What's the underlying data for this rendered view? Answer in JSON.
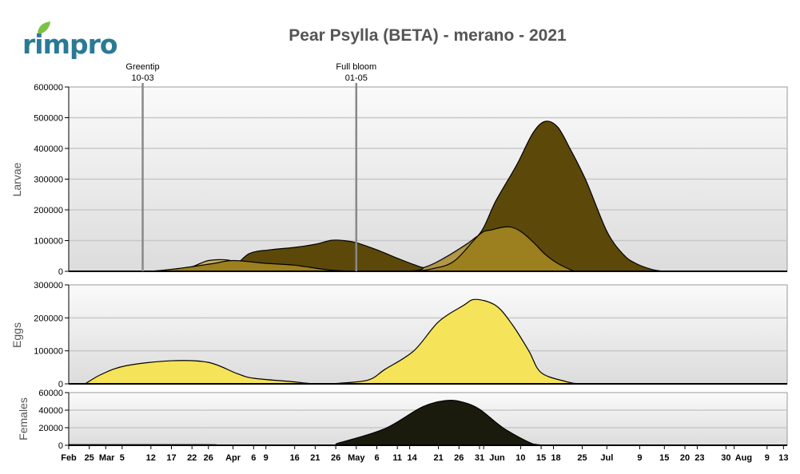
{
  "title": "Pear Psylla (BETA) - merano - 2021",
  "logo": {
    "text": "rimpro",
    "leaf_color": "#7cc242",
    "text_color": "#2a7a95"
  },
  "markers": [
    {
      "label": "Greentip",
      "date_label": "10-03",
      "date": "03-10"
    },
    {
      "label": "Full bloom",
      "date_label": "01-05",
      "date": "05-01"
    }
  ],
  "x_axis": {
    "start": "02-20",
    "end": "08-14",
    "ticks": [
      {
        "label": "Feb",
        "date": "02-20"
      },
      {
        "label": "25",
        "date": "02-25"
      },
      {
        "label": "Mar",
        "date": "03-01"
      },
      {
        "label": "5",
        "date": "03-05"
      },
      {
        "label": "12",
        "date": "03-12"
      },
      {
        "label": "17",
        "date": "03-17"
      },
      {
        "label": "22",
        "date": "03-22"
      },
      {
        "label": "26",
        "date": "03-26"
      },
      {
        "label": "Apr",
        "date": "04-01"
      },
      {
        "label": "6",
        "date": "04-06"
      },
      {
        "label": "9",
        "date": "04-09"
      },
      {
        "label": "16",
        "date": "04-16"
      },
      {
        "label": "21",
        "date": "04-21"
      },
      {
        "label": "26",
        "date": "04-26"
      },
      {
        "label": "May",
        "date": "05-01"
      },
      {
        "label": "6",
        "date": "05-06"
      },
      {
        "label": "11",
        "date": "05-11"
      },
      {
        "label": "14",
        "date": "05-14"
      },
      {
        "label": "21",
        "date": "05-21"
      },
      {
        "label": "26",
        "date": "05-26"
      },
      {
        "label": "31",
        "date": "05-31"
      },
      {
        "label": "Jun",
        "date": "06-01"
      },
      {
        "label": "10",
        "date": "06-10"
      },
      {
        "label": "15",
        "date": "06-15"
      },
      {
        "label": "18",
        "date": "06-18"
      },
      {
        "label": "25",
        "date": "06-25"
      },
      {
        "label": "Jul",
        "date": "07-01"
      },
      {
        "label": "9",
        "date": "07-09"
      },
      {
        "label": "15",
        "date": "07-15"
      },
      {
        "label": "20",
        "date": "07-20"
      },
      {
        "label": "23",
        "date": "07-23"
      },
      {
        "label": "30",
        "date": "07-30"
      },
      {
        "label": "Aug",
        "date": "08-01"
      },
      {
        "label": "9",
        "date": "08-09"
      },
      {
        "label": "13",
        "date": "08-13"
      }
    ]
  },
  "chart_data": [
    {
      "type": "area",
      "ylabel": "Larvae",
      "ylim": [
        0,
        600000
      ],
      "yticks": [
        "0",
        "100000",
        "200000",
        "300000",
        "400000",
        "500000",
        "600000"
      ],
      "grid": true,
      "series": [
        {
          "color": "#5c4909",
          "points": [
            [
              "03-27",
              0
            ],
            [
              "04-01",
              15000
            ],
            [
              "04-05",
              58000
            ],
            [
              "04-10",
              70000
            ],
            [
              "04-16",
              78000
            ],
            [
              "04-21",
              88000
            ],
            [
              "04-25",
              101000
            ],
            [
              "04-28",
              100000
            ],
            [
              "05-01",
              93000
            ],
            [
              "05-06",
              70000
            ],
            [
              "05-10",
              48000
            ],
            [
              "05-15",
              22000
            ],
            [
              "05-18",
              12000
            ],
            [
              "05-21",
              30000
            ],
            [
              "05-25",
              60000
            ],
            [
              "05-31",
              122000
            ],
            [
              "06-04",
              230000
            ],
            [
              "06-09",
              345000
            ],
            [
              "06-13",
              450000
            ],
            [
              "06-16",
              488000
            ],
            [
              "06-19",
              470000
            ],
            [
              "06-22",
              400000
            ],
            [
              "06-26",
              293000
            ],
            [
              "07-01",
              130000
            ],
            [
              "07-05",
              55000
            ],
            [
              "07-08",
              26000
            ],
            [
              "07-12",
              6000
            ],
            [
              "07-15",
              0
            ]
          ]
        },
        {
          "color": "#c2a552",
          "opacity": 0.85,
          "points": [
            [
              "03-13",
              0
            ],
            [
              "03-18",
              8000
            ],
            [
              "03-22",
              15000
            ],
            [
              "03-26",
              35000
            ],
            [
              "03-31",
              36000
            ],
            [
              "04-03",
              15000
            ],
            [
              "04-08",
              0
            ],
            [
              "05-12",
              0
            ],
            [
              "05-18",
              15000
            ],
            [
              "05-23",
              48000
            ],
            [
              "05-28",
              90000
            ],
            [
              "05-31",
              118000
            ],
            [
              "06-03",
              125000
            ],
            [
              "06-08",
              100000
            ],
            [
              "06-15",
              30000
            ],
            [
              "06-20",
              0
            ]
          ]
        },
        {
          "color": "#9c7f1e",
          "points": [
            [
              "03-12",
              0
            ],
            [
              "03-18",
              8000
            ],
            [
              "03-27",
              25000
            ],
            [
              "04-01",
              35000
            ],
            [
              "04-09",
              26000
            ],
            [
              "04-16",
              20000
            ],
            [
              "04-24",
              5000
            ],
            [
              "05-01",
              0
            ],
            [
              "05-14",
              0
            ],
            [
              "05-20",
              10000
            ],
            [
              "05-25",
              35000
            ],
            [
              "05-31",
              120000
            ],
            [
              "06-03",
              135000
            ],
            [
              "06-07",
              145000
            ],
            [
              "06-10",
              130000
            ],
            [
              "06-13",
              96000
            ],
            [
              "06-16",
              55000
            ],
            [
              "06-19",
              26000
            ],
            [
              "06-23",
              0
            ]
          ]
        }
      ]
    },
    {
      "type": "area",
      "ylabel": "Eggs",
      "ylim": [
        0,
        300000
      ],
      "yticks": [
        "0",
        "100000",
        "200000",
        "300000"
      ],
      "grid": true,
      "series": [
        {
          "color": "#f5e35a",
          "points": [
            [
              "02-24",
              0
            ],
            [
              "02-28",
              29000
            ],
            [
              "03-06",
              55000
            ],
            [
              "03-17",
              70000
            ],
            [
              "03-26",
              65000
            ],
            [
              "04-02",
              31000
            ],
            [
              "04-06",
              17000
            ],
            [
              "04-15",
              7000
            ],
            [
              "04-21",
              0
            ],
            [
              "04-27",
              2000
            ],
            [
              "05-04",
              12000
            ],
            [
              "05-08",
              44000
            ],
            [
              "05-15",
              100000
            ],
            [
              "05-21",
              188000
            ],
            [
              "05-27",
              237000
            ],
            [
              "05-30",
              256000
            ],
            [
              "06-04",
              237000
            ],
            [
              "06-08",
              179000
            ],
            [
              "06-12",
              100000
            ],
            [
              "06-15",
              34000
            ],
            [
              "06-21",
              7000
            ],
            [
              "06-24",
              0
            ]
          ]
        }
      ]
    },
    {
      "type": "area",
      "ylabel": "Females",
      "ylim": [
        0,
        60000
      ],
      "yticks": [
        "0",
        "20000",
        "40000",
        "60000"
      ],
      "grid": true,
      "series": [
        {
          "color": "#1a1a0d",
          "points": [
            [
              "02-20",
              700
            ],
            [
              "03-26",
              700
            ],
            [
              "03-27",
              0
            ],
            [
              "04-23",
              0
            ],
            [
              "04-27",
              3000
            ],
            [
              "05-08",
              19000
            ],
            [
              "05-17",
              43500
            ],
            [
              "05-23",
              51000
            ],
            [
              "05-27",
              49000
            ],
            [
              "05-31",
              41000
            ],
            [
              "06-06",
              19000
            ],
            [
              "06-13",
              1500
            ],
            [
              "06-16",
              0
            ]
          ]
        }
      ]
    }
  ]
}
